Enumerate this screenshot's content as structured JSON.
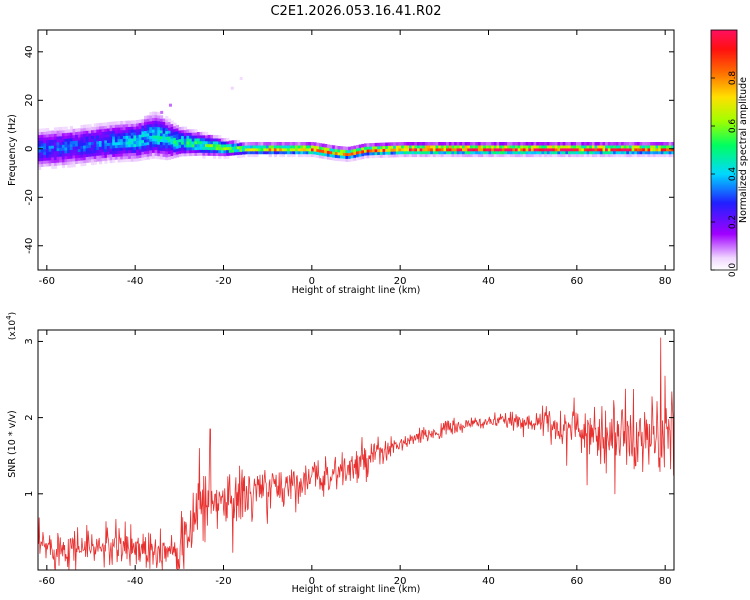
{
  "figure_title": "C2E1.2026.053.16.41.R02",
  "chart_data": [
    {
      "type": "heatmap",
      "title": "C2E1.2026.053.16.41.R02",
      "xlabel": "Height of straight line (km)",
      "ylabel": "Frequency (Hz)",
      "xlim": [
        -62,
        82
      ],
      "ylim": [
        -50,
        49
      ],
      "xticks": [
        -60,
        -40,
        -20,
        0,
        20,
        40,
        60,
        80
      ],
      "yticks": [
        -40,
        -20,
        0,
        20,
        40
      ],
      "grid": false,
      "colorbar": {
        "label": "Normalized spectral amplitude",
        "range": [
          0,
          1
        ],
        "ticks": [
          0.0,
          0.2,
          0.4,
          0.6,
          0.8
        ],
        "colormap": "rainbow (white-magenta-purple-blue-cyan-green-yellow-orange-red-crimson)"
      },
      "ridge": {
        "description": "Dominant frequency band centred near 0 Hz",
        "x": [
          -62,
          -55,
          -50,
          -45,
          -40,
          -36,
          -33,
          -30,
          -25,
          -20,
          -15,
          -10,
          -5,
          0,
          5,
          8,
          12,
          20,
          30,
          40,
          50,
          60,
          70,
          80
        ],
        "freq": [
          0,
          1,
          2,
          3,
          3.5,
          6,
          4,
          3,
          2,
          0.5,
          0,
          0,
          0,
          0,
          -1.5,
          -2,
          -0.5,
          0,
          0,
          0,
          0,
          0,
          0,
          0
        ],
        "spread_hz": [
          7,
          7,
          7,
          7,
          7,
          8,
          7,
          5,
          4,
          3,
          2,
          2,
          2,
          2,
          2,
          2,
          2,
          2,
          2,
          2,
          2,
          2,
          2,
          2
        ],
        "amplitude": [
          0.3,
          0.3,
          0.3,
          0.35,
          0.4,
          0.4,
          0.45,
          0.45,
          0.5,
          0.55,
          0.6,
          0.7,
          0.7,
          0.85,
          0.8,
          0.75,
          0.8,
          0.9,
          0.95,
          0.95,
          0.9,
          0.9,
          0.85,
          0.8
        ]
      },
      "outliers": [
        {
          "x": -34,
          "freq": 15,
          "amplitude": 0.1
        },
        {
          "x": -32,
          "freq": 18,
          "amplitude": 0.1
        },
        {
          "x": -18,
          "freq": 25,
          "amplitude": 0.05
        },
        {
          "x": -16,
          "freq": 29,
          "amplitude": 0.04
        }
      ]
    },
    {
      "type": "line",
      "xlabel": "Height of straight line (km)",
      "ylabel": "SNR (10 * v/v)",
      "y_multiplier": "(x10^4)",
      "xlim": [
        -62,
        82
      ],
      "ylim": [
        0,
        3.15
      ],
      "xticks": [
        -60,
        -40,
        -20,
        0,
        20,
        40,
        60,
        80
      ],
      "yticks": [
        1,
        2,
        3
      ],
      "grid": false,
      "series": [
        {
          "color": "#e8302f",
          "envelope": {
            "x": [
              -62,
              -50,
              -40,
              -32,
              -28,
              -26,
              -20,
              -10,
              0,
              10,
              15,
              20,
              30,
              40,
              50,
              60,
              70,
              80,
              82
            ],
            "baseline": [
              0.3,
              0.3,
              0.3,
              0.3,
              0.35,
              0.9,
              0.9,
              1.05,
              1.2,
              1.35,
              1.5,
              1.65,
              1.85,
              1.95,
              1.95,
              1.85,
              1.75,
              1.7,
              1.75
            ],
            "noise": [
              0.25,
              0.25,
              0.28,
              0.28,
              0.3,
              0.45,
              0.45,
              0.28,
              0.2,
              0.25,
              0.2,
              0.1,
              0.1,
              0.08,
              0.12,
              0.35,
              0.45,
              0.5,
              0.5
            ]
          },
          "peaks": [
            {
              "x": -25.5,
              "y": 1.6
            },
            {
              "x": -23,
              "y": 1.85
            },
            {
              "x": 15,
              "y": 1.75
            },
            {
              "x": 79,
              "y": 3.05
            },
            {
              "x": 80,
              "y": 2.55
            }
          ]
        }
      ]
    }
  ]
}
